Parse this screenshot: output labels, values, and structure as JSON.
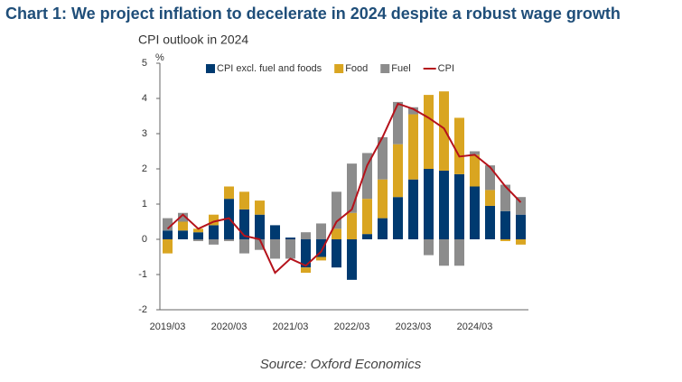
{
  "chart_data": {
    "type": "bar",
    "title": "Chart 1: We project inflation to decelerate in 2024 despite a robust wage growth",
    "subtitle": "CPI outlook in 2024",
    "y_label": "%",
    "source": "Source: Oxford Economics",
    "categories": [
      "2019/03",
      null,
      null,
      null,
      "2020/03",
      null,
      null,
      null,
      "2021/03",
      null,
      null,
      null,
      "2022/03",
      null,
      null,
      null,
      "2023/03",
      null,
      null,
      null,
      "2024/03",
      null,
      null,
      null
    ],
    "series": [
      {
        "name": "CPI excl. fuel and foods",
        "type": "bar",
        "color": "#003a70",
        "values": [
          0.25,
          0.25,
          0.2,
          0.4,
          1.15,
          0.85,
          0.7,
          0.4,
          0.05,
          -0.8,
          -0.5,
          -0.8,
          -1.15,
          0.15,
          0.6,
          1.2,
          1.7,
          2.0,
          1.95,
          1.85,
          1.5,
          0.95,
          0.8,
          0.7
        ]
      },
      {
        "name": "Food",
        "type": "bar",
        "color": "#d9a521",
        "values": [
          -0.4,
          0.25,
          0.1,
          0.3,
          0.35,
          0.5,
          0.4,
          0,
          0,
          -0.15,
          -0.1,
          0.3,
          0.75,
          1.0,
          1.1,
          1.5,
          1.85,
          2.1,
          2.25,
          1.6,
          0.9,
          0.45,
          -0.05,
          -0.15
        ]
      },
      {
        "name": "Fuel",
        "type": "bar",
        "color": "#8c8c8c",
        "values": [
          0.35,
          0.25,
          -0.05,
          -0.15,
          -0.05,
          -0.4,
          -0.3,
          -0.55,
          -0.55,
          0.2,
          0.45,
          1.05,
          1.4,
          1.3,
          1.2,
          1.2,
          0.2,
          -0.45,
          -0.75,
          -0.75,
          0.1,
          0.7,
          0.75,
          0.5
        ]
      },
      {
        "name": "CPI",
        "type": "line",
        "color": "#b5121b",
        "values": [
          0.3,
          0.7,
          0.3,
          0.5,
          0.6,
          0.1,
          0,
          -0.95,
          -0.55,
          -0.75,
          -0.35,
          0.5,
          0.85,
          2.1,
          2.9,
          3.85,
          3.7,
          3.45,
          3.15,
          2.35,
          2.4,
          2.05,
          1.5,
          1.05
        ]
      }
    ],
    "ylim": [
      -2,
      5
    ],
    "yticks": [
      -2,
      -1,
      0,
      1,
      2,
      3,
      4,
      5
    ],
    "legend": "top"
  }
}
